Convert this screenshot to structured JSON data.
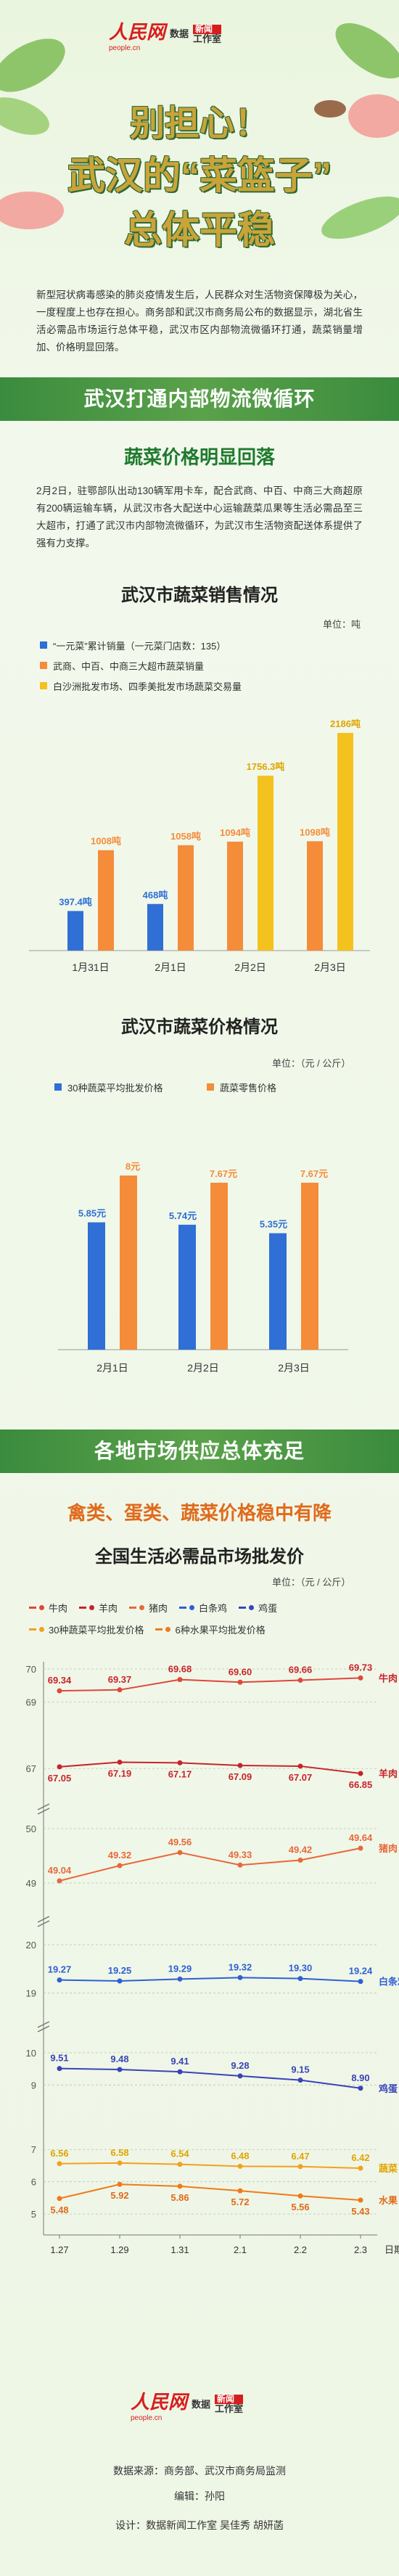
{
  "header": {
    "logo_text": "人民网",
    "logo_url": "people.cn",
    "badge_top": "数据",
    "badge_red": "新闻",
    "badge_bottom": "工作室",
    "title_line1": "别担心！",
    "title_line2": "武汉的“菜篮子”",
    "title_line3": "总体平稳"
  },
  "intro": "新型冠状病毒感染的肺炎疫情发生后，人民群众对生活物资保障极为关心，一度程度上也存在担心。商务部和武汉市商务局公布的数据显示，湖北省生活必需品市场运行总体平稳，武汉市区内部物流微循环打通，蔬菜销量增加、价格明显回落。",
  "section1": {
    "band": "武汉打通内部物流微循环",
    "subtitle": "蔬菜价格明显回落",
    "body": "2月2日，驻鄂部队出动130辆军用卡车，配合武商、中百、中商三大商超原有200辆运输车辆，从武汉市各大配送中心运输蔬菜瓜果等生活必需品至三大超市，打通了武汉市内部物流微循环，为武汉市生活物资配送体系提供了强有力支撑。"
  },
  "section2": {
    "band": "各地市场供应总体充足",
    "subtitle": "禽类、蛋类、蔬菜价格稳中有降"
  },
  "footer": {
    "source": "数据来源：商务部、武汉市商务局监测",
    "editor": "编辑：孙阳",
    "design": "设计：数据新闻工作室 吴佳秀 胡妍菡"
  },
  "colors": {
    "blue": "#2f6fd6",
    "orange": "#f58c3a",
    "yellow": "#f4c21e",
    "green": "#3b8b3e",
    "red": "#e0473a"
  },
  "chart_data": [
    {
      "type": "bar",
      "title": "武汉市蔬菜销售情况",
      "unit": "单位：吨",
      "categories": [
        "1月31日",
        "2月1日",
        "2月2日",
        "2月3日"
      ],
      "series": [
        {
          "name": "“一元菜”累计销量（一元菜门店数：135）",
          "values": [
            397.4,
            468,
            null,
            null
          ],
          "labels": [
            "397.4吨",
            "468吨",
            "",
            ""
          ]
        },
        {
          "name": "武商、中百、中商三大超市蔬菜销量",
          "values": [
            1008,
            1058,
            1094,
            1098
          ],
          "labels": [
            "1008吨",
            "1058吨",
            "1094吨",
            "1098吨"
          ]
        },
        {
          "name": "白沙洲批发市场、四季美批发市场蔬菜交易量",
          "values": [
            null,
            null,
            1756.3,
            2186
          ],
          "labels": [
            "",
            "",
            "1756.3吨",
            "2186吨"
          ]
        }
      ]
    },
    {
      "type": "bar",
      "title": "武汉市蔬菜价格情况",
      "unit": "单位：（元 / 公斤）",
      "categories": [
        "2月1日",
        "2月2日",
        "2月3日"
      ],
      "series": [
        {
          "name": "30种蔬菜平均批发价格",
          "values": [
            5.85,
            5.74,
            5.35
          ],
          "labels": [
            "5.85元",
            "5.74元",
            "5.35元"
          ]
        },
        {
          "name": "蔬菜零售价格",
          "values": [
            8,
            7.67,
            7.67
          ],
          "labels": [
            "8元",
            "7.67元",
            "7.67元"
          ]
        }
      ]
    },
    {
      "type": "line",
      "title": "全国生活必需品市场批发价",
      "unit": "单位：（元 / 公斤）",
      "xlabel": "日期",
      "x": [
        "1.27",
        "1.29",
        "1.31",
        "2.1",
        "2.2",
        "2.3"
      ],
      "yticks": [
        "70",
        "69",
        "67",
        "50",
        "49",
        "20",
        "19",
        "10",
        "9",
        "7",
        "6",
        "5"
      ],
      "series": [
        {
          "name": "牛肉",
          "values": [
            69.34,
            69.37,
            69.68,
            69.6,
            69.66,
            69.73
          ],
          "labels": [
            "69.34",
            "69.37",
            "69.68",
            "69.60",
            "69.66",
            "69.73"
          ]
        },
        {
          "name": "羊肉",
          "values": [
            67.05,
            67.19,
            67.17,
            67.09,
            67.07,
            66.85
          ],
          "labels": [
            "67.05",
            "67.19",
            "67.17",
            "67.09",
            "67.07",
            "66.85"
          ]
        },
        {
          "name": "猪肉",
          "values": [
            49.04,
            49.32,
            49.56,
            49.33,
            49.42,
            49.64
          ],
          "labels": [
            "49.04",
            "49.32",
            "49.56",
            "49.33",
            "49.42",
            "49.64"
          ]
        },
        {
          "name": "白条鸡",
          "values": [
            19.27,
            19.25,
            19.29,
            19.32,
            19.3,
            19.24
          ],
          "labels": [
            "19.27",
            "19.25",
            "19.29",
            "19.32",
            "19.30",
            "19.24"
          ]
        },
        {
          "name": "鸡蛋",
          "values": [
            9.51,
            9.48,
            9.41,
            9.28,
            9.15,
            8.9
          ],
          "labels": [
            "9.51",
            "9.48",
            "9.41",
            "9.28",
            "9.15",
            "8.90"
          ]
        },
        {
          "name": "30种蔬菜平均批发价格",
          "end_label": "蔬菜",
          "values": [
            6.56,
            6.58,
            6.54,
            6.48,
            6.47,
            6.42
          ],
          "labels": [
            "6.56",
            "6.58",
            "6.54",
            "6.48",
            "6.47",
            "6.42"
          ]
        },
        {
          "name": "6种水果平均批发价格",
          "end_label": "水果",
          "values": [
            5.48,
            5.92,
            5.86,
            5.72,
            5.56,
            5.43
          ],
          "labels": [
            "5.48",
            "5.92",
            "5.86",
            "5.72",
            "5.56",
            "5.43"
          ]
        }
      ]
    }
  ]
}
